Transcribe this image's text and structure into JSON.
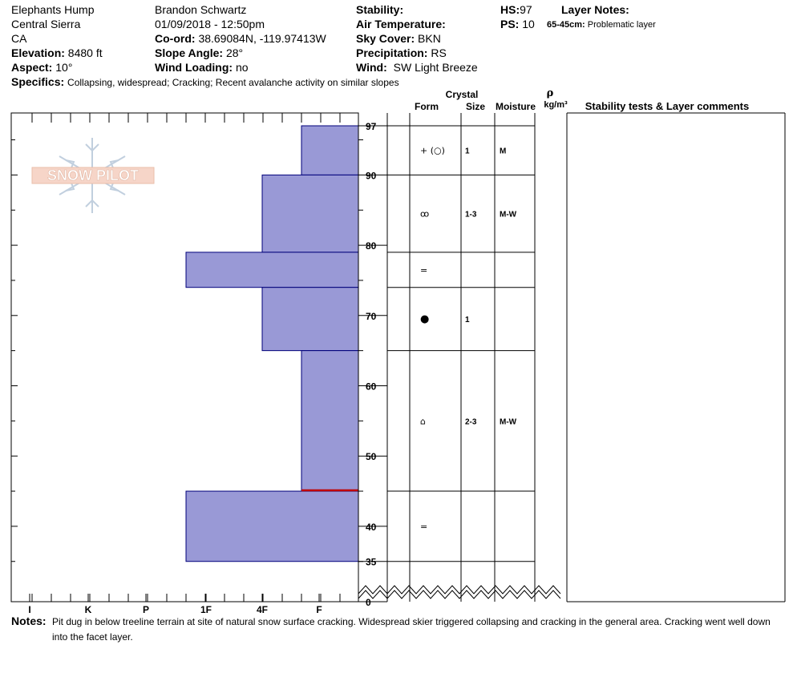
{
  "header": {
    "location": "Elephants Hump",
    "region": "Central Sierra",
    "state": "CA",
    "elevation_label": "Elevation:",
    "elevation_value": "8480 ft",
    "aspect_label": "Aspect:",
    "aspect_value": "10°",
    "observer": "Brandon Schwartz",
    "datetime": "01/09/2018 - 12:50pm",
    "coord_label": "Co-ord:",
    "coord_value": "38.69084N, -119.97413W",
    "slope_label": "Slope Angle:",
    "slope_value": "28°",
    "wind_loading_label": "Wind Loading:",
    "wind_loading_value": "no",
    "stability_label": "Stability:",
    "air_temp_label": "Air Temperature:",
    "sky_cover_label": "Sky Cover:",
    "sky_cover_value": "BKN",
    "precip_label": "Precipitation:",
    "precip_value": "RS",
    "wind_label": "Wind:",
    "wind_value": "SW Light Breeze",
    "hs_label": "HS:",
    "hs_value": "97",
    "ps_label": "PS:",
    "ps_value": "10",
    "layer_notes_label": "Layer Notes:",
    "layer_notes_range": "65-45cm:",
    "layer_notes_text": "Problematic layer",
    "specifics_label": "Specifics:",
    "specifics_text": "Collapsing, widespread;  Cracking;  Recent avalanche activity on similar slopes"
  },
  "logo_text": "SNOW PILOT",
  "table_headers": {
    "crystal": "Crystal",
    "form": "Form",
    "size": "Size",
    "moisture": "Moisture",
    "rho": "ρ",
    "density_unit": "kg/m³",
    "comments": "Stability tests & Layer comments"
  },
  "notes": {
    "label": "Notes:",
    "text_line1": "Pit dug in below treeline terrain at site of natural snow surface cracking. Widespread skier triggered collapsing and cracking in the general area. Cracking went well down",
    "text_line2": "into the facet layer."
  },
  "colors": {
    "layer_fill": "#9999d6",
    "layer_stroke": "#00007a",
    "weak_layer": "#c00000"
  },
  "chart_data": {
    "type": "bar",
    "title": "",
    "xlabel": "",
    "ylabel": "",
    "y_unit": "cm",
    "ylim": [
      0,
      97
    ],
    "y_tick_labels": [
      "97",
      "90",
      "80",
      "70",
      "60",
      "50",
      "40",
      "35",
      "0"
    ],
    "x_categories": [
      "I",
      "K",
      "P",
      "1F",
      "4F",
      "F"
    ],
    "layers": [
      {
        "top": 97,
        "bottom": 90,
        "hardness": "F"
      },
      {
        "top": 90,
        "bottom": 79,
        "hardness": "4F"
      },
      {
        "top": 79,
        "bottom": 74,
        "hardness": "1F"
      },
      {
        "top": 74,
        "bottom": 65,
        "hardness": "4F"
      },
      {
        "top": 65,
        "bottom": 45,
        "hardness": "F"
      },
      {
        "top": 45,
        "bottom": 35,
        "hardness": "1F"
      }
    ],
    "weak_layer_depth": 45,
    "table_rows": [
      {
        "top": 97,
        "bottom": 90,
        "form": "+ (○)",
        "size": "1",
        "moisture": "M"
      },
      {
        "top": 90,
        "bottom": 79,
        "form": "ꝏ",
        "size": "1-3",
        "moisture": "M-W"
      },
      {
        "top": 79,
        "bottom": 74,
        "form": "=",
        "size": "",
        "moisture": ""
      },
      {
        "top": 74,
        "bottom": 65,
        "form": "●",
        "size": "1",
        "moisture": ""
      },
      {
        "top": 65,
        "bottom": 45,
        "form": "⌂",
        "size": "2-3",
        "moisture": "M-W"
      },
      {
        "top": 45,
        "bottom": 35,
        "form": "=",
        "size": "",
        "moisture": ""
      }
    ]
  }
}
